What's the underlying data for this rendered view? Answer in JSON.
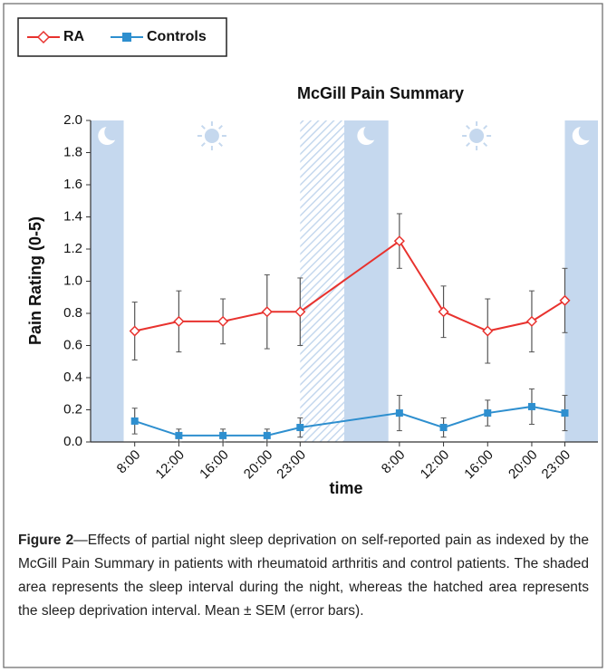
{
  "chart_data": {
    "type": "line",
    "title": "McGill Pain Summary",
    "xlabel": "time",
    "ylabel": "Pain Rating (0-5)",
    "categories": [
      "8:00",
      "12:00",
      "16:00",
      "20:00",
      "23:00",
      "8:00",
      "12:00",
      "16:00",
      "20:00",
      "23:00"
    ],
    "ylim": [
      0,
      2
    ],
    "yticks": [
      {
        "value": 0,
        "label": "0.0"
      },
      0.2,
      0.4,
      0.6,
      0.8,
      {
        "value": 1,
        "label": "1.0"
      },
      1.2,
      1.4,
      1.6,
      1.8,
      {
        "value": 2,
        "label": "2.0"
      }
    ],
    "series": [
      {
        "name": "RA",
        "color": "#e8322e",
        "marker": "diamond",
        "values": [
          0.69,
          0.75,
          0.75,
          0.81,
          0.81,
          1.25,
          0.81,
          0.69,
          0.75,
          0.88
        ],
        "errors": [
          0.18,
          0.19,
          0.14,
          0.23,
          0.21,
          0.17,
          0.16,
          0.2,
          0.19,
          0.2
        ]
      },
      {
        "name": "Controls",
        "color": "#2e8fcf",
        "marker": "square",
        "values": [
          0.13,
          0.04,
          0.04,
          0.04,
          0.09,
          0.18,
          0.09,
          0.18,
          0.22,
          0.18
        ],
        "errors": [
          0.08,
          0.04,
          0.04,
          0.04,
          0.06,
          0.11,
          0.06,
          0.08,
          0.11,
          0.11
        ]
      }
    ]
  },
  "caption": {
    "label": "Figure 2",
    "text": "—Effects of partial night sleep deprivation on self-reported pain as indexed by the McGill Pain Summary in patients with rheumatoid arthritis and control patients. The shaded area represents the sleep interval during the night, whereas the hatched area represents the sleep deprivation interval. Mean ± SEM (error bars)."
  }
}
